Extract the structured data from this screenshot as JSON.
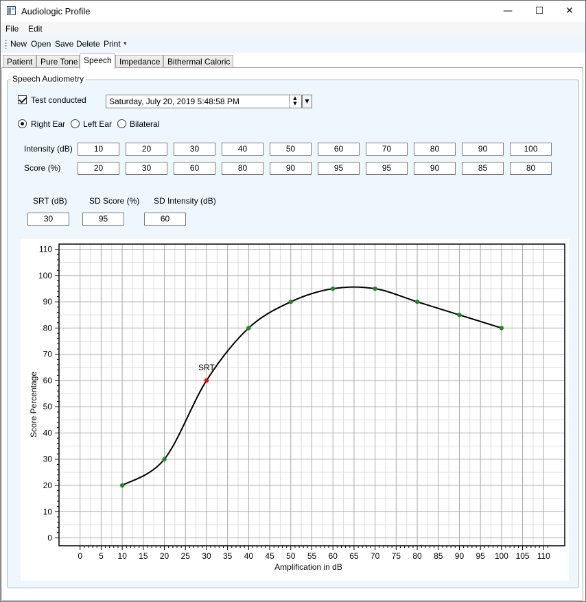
{
  "window": {
    "title": "Audiologic Profile",
    "minimize_glyph": "—",
    "maximize_glyph": "☐",
    "close_glyph": "✕"
  },
  "menu": {
    "file": "File",
    "edit": "Edit"
  },
  "toolbar": {
    "new": "New",
    "open": "Open",
    "save": "Save",
    "delete": "Delete",
    "print": "Print",
    "overflow_glyph": "▾"
  },
  "tabs": {
    "patient": "Patient",
    "pure_tone": "Pure Tone",
    "speech": "Speech",
    "impedance": "Impedance",
    "bithermal_caloric": "Bithermal Caloric",
    "active": "Speech"
  },
  "speech": {
    "group_title": "Speech Audiometry",
    "test_conducted_label": "Test conducted",
    "test_conducted": true,
    "date_value": "Saturday, July 20, 2019 5:48:58 PM",
    "ear": {
      "right": "Right Ear",
      "left": "Left Ear",
      "bilateral": "Bilateral",
      "selected": "Right Ear"
    },
    "intensity_label": "Intensity (dB)",
    "score_label": "Score (%)",
    "intensity": [
      "10",
      "20",
      "30",
      "40",
      "50",
      "60",
      "70",
      "80",
      "90",
      "100"
    ],
    "score": [
      "20",
      "30",
      "60",
      "80",
      "90",
      "95",
      "95",
      "90",
      "85",
      "80"
    ],
    "srt_label": "SRT (dB)",
    "sd_score_label": "SD Score (%)",
    "sd_intensity_label": "SD Intensity (dB)",
    "srt_value": "30",
    "sd_score_value": "95",
    "sd_intensity_value": "60"
  },
  "chart_data": {
    "type": "line",
    "title": "",
    "xlabel": "Amplification in dB",
    "ylabel": "Score Percentage",
    "xlim": [
      -5,
      115
    ],
    "ylim": [
      -3,
      112
    ],
    "x_ticks": [
      0,
      5,
      10,
      15,
      20,
      25,
      30,
      35,
      40,
      45,
      50,
      55,
      60,
      65,
      70,
      75,
      80,
      85,
      90,
      95,
      100,
      105,
      110
    ],
    "y_ticks": [
      0,
      10,
      20,
      30,
      40,
      50,
      60,
      70,
      80,
      90,
      100,
      110
    ],
    "grid": true,
    "series": [
      {
        "x": [
          10,
          20,
          30,
          40,
          50,
          60,
          70,
          80,
          90,
          100
        ],
        "y": [
          20,
          30,
          60,
          80,
          90,
          95,
          95,
          90,
          85,
          80
        ],
        "color": "#000000",
        "point_color": "#1a8a1a"
      }
    ],
    "annotations": [
      {
        "x": 30,
        "y": 60,
        "text": "SRT",
        "point_color": "#ff0000"
      }
    ]
  }
}
